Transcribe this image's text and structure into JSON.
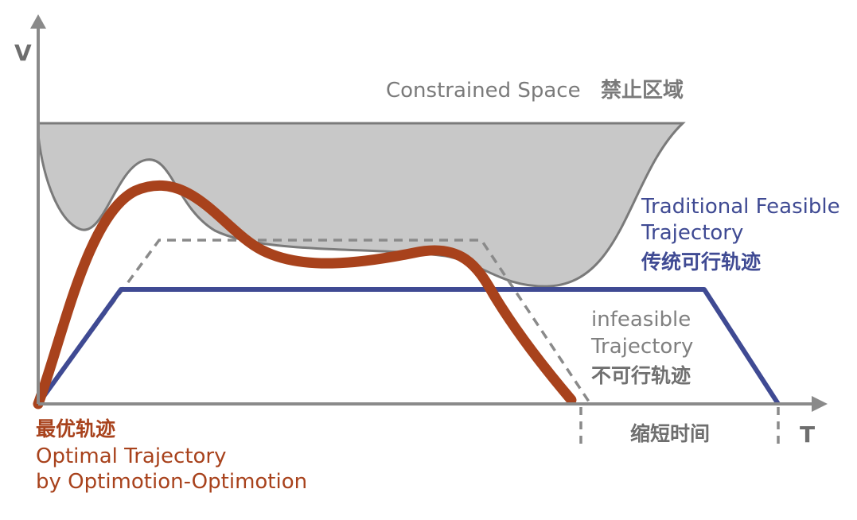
{
  "axes": {
    "y_label": "V",
    "x_label": "T"
  },
  "constrained_space": {
    "label_en": "Constrained Space",
    "label_cn": "禁止区域",
    "fill_color": "#c8c8c8",
    "stroke_color": "#7a7a7a"
  },
  "traditional": {
    "line1": "Traditional Feasible",
    "line2": "Trajectory",
    "cn": "传统可行轨迹",
    "color": "#3f4a93"
  },
  "infeasible": {
    "line1": "infeasible",
    "line2": "Trajectory",
    "cn": "不可行轨迹",
    "color": "#808080"
  },
  "optimal": {
    "cn": "最优轨迹",
    "line1": "Optimal Trajectory",
    "line2": "by Optimotion-Optimotion",
    "color": "#a8421c"
  },
  "time_saving": {
    "cn": "缩短时间",
    "color": "#6e6e6e"
  }
}
